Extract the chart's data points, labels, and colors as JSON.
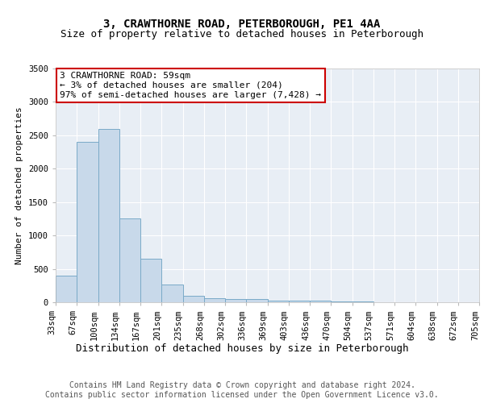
{
  "title1": "3, CRAWTHORNE ROAD, PETERBOROUGH, PE1 4AA",
  "title2": "Size of property relative to detached houses in Peterborough",
  "xlabel": "Distribution of detached houses by size in Peterborough",
  "ylabel": "Number of detached properties",
  "bar_color": "#c8d9ea",
  "bar_edge_color": "#7aaac8",
  "background_color": "#e8eef5",
  "grid_color": "#ffffff",
  "bin_labels": [
    "33sqm",
    "67sqm",
    "100sqm",
    "134sqm",
    "167sqm",
    "201sqm",
    "235sqm",
    "268sqm",
    "302sqm",
    "336sqm",
    "369sqm",
    "403sqm",
    "436sqm",
    "470sqm",
    "504sqm",
    "537sqm",
    "571sqm",
    "604sqm",
    "638sqm",
    "672sqm",
    "705sqm"
  ],
  "bar_heights": [
    400,
    2400,
    2600,
    1250,
    650,
    260,
    100,
    60,
    50,
    50,
    30,
    20,
    20,
    15,
    10,
    5,
    5,
    5,
    5,
    5
  ],
  "ylim": [
    0,
    3500
  ],
  "yticks": [
    0,
    500,
    1000,
    1500,
    2000,
    2500,
    3000,
    3500
  ],
  "annotation_text": "3 CRAWTHORNE ROAD: 59sqm\n← 3% of detached houses are smaller (204)\n97% of semi-detached houses are larger (7,428) →",
  "annotation_box_color": "#ffffff",
  "annotation_border_color": "#cc0000",
  "footer_text": "Contains HM Land Registry data © Crown copyright and database right 2024.\nContains public sector information licensed under the Open Government Licence v3.0.",
  "title1_fontsize": 10,
  "title2_fontsize": 9,
  "xlabel_fontsize": 9,
  "ylabel_fontsize": 8,
  "tick_fontsize": 7.5,
  "annotation_fontsize": 8,
  "footer_fontsize": 7
}
